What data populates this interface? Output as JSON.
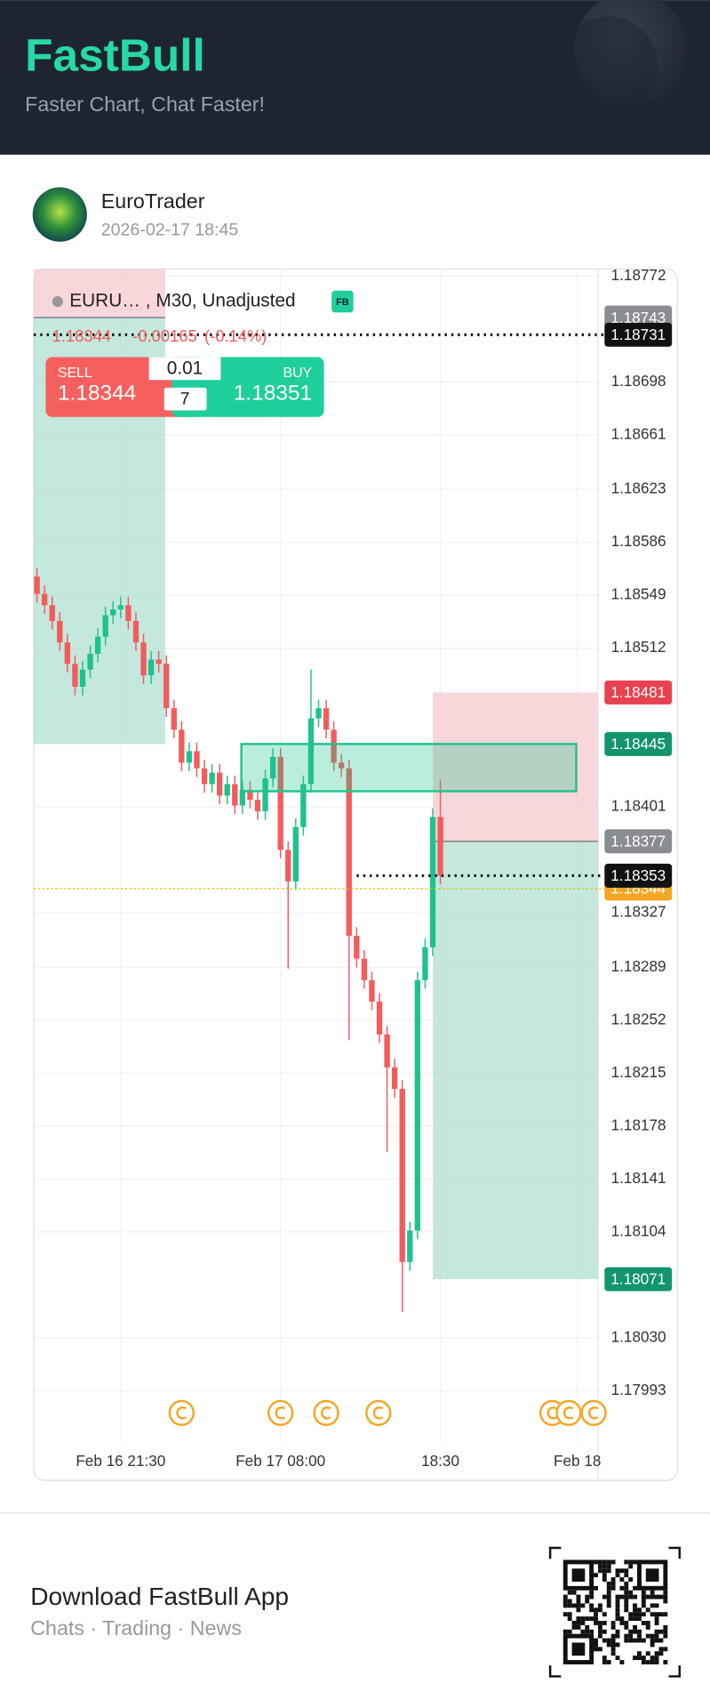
{
  "header": {
    "title": "FastBull",
    "subtitle": "Faster Chart, Chat Faster!"
  },
  "post": {
    "author": "EuroTrader",
    "time": "2026-02-17 18:45"
  },
  "chart_data": {
    "type": "candlestick",
    "legend": "EURU…  , M30, Unadjusted",
    "badge": "FB",
    "quote": {
      "last": "1.18344",
      "change": "-0.00165",
      "change_pct": "(-0.14%)"
    },
    "order_panel": {
      "sell_label": "SELL",
      "sell_price": "1.18344",
      "lot": "0.01",
      "count": "7",
      "buy_label": "BUY",
      "buy_price": "1.18351"
    },
    "categories": [
      null,
      null,
      null,
      null,
      null,
      null,
      null,
      null,
      null,
      null,
      null,
      "Feb 16 21:30",
      null,
      null,
      null,
      null,
      null,
      null,
      null,
      null,
      null,
      null,
      null,
      null,
      null,
      null,
      null,
      null,
      null,
      null,
      null,
      null,
      "Feb 17 08:00",
      null,
      null,
      null,
      null,
      null,
      null,
      null,
      null,
      null,
      null,
      null,
      null,
      null,
      null,
      null,
      null,
      null,
      null,
      null,
      null,
      "18:30",
      null,
      null,
      null,
      null,
      null,
      null,
      null,
      null,
      null,
      null,
      null,
      null,
      null,
      null,
      null,
      null,
      null,
      "Feb 18",
      null,
      null
    ],
    "open": [
      1.18562,
      1.1855,
      1.18542,
      1.18531,
      1.18516,
      1.18501,
      1.18485,
      1.18497,
      1.18508,
      1.1852,
      1.18535,
      1.18539,
      1.18542,
      1.18531,
      1.18516,
      1.18493,
      1.18504,
      1.18501,
      1.1847,
      1.18455,
      1.18432,
      1.1844,
      1.18428,
      1.18417,
      1.18425,
      1.18409,
      1.18417,
      1.18402,
      1.18413,
      1.18406,
      1.18398,
      1.18421,
      1.18436,
      1.18371,
      1.18349,
      1.18387,
      1.18417,
      1.18463,
      1.1847,
      1.18455,
      1.18432,
      1.18428,
      1.18311,
      1.18295,
      1.1828,
      1.18265,
      1.18242,
      1.18219,
      1.18204,
      1.18083,
      1.18105,
      1.1828,
      1.18303,
      1.18394,
      null,
      null,
      null,
      null,
      null,
      null,
      null,
      null,
      null,
      null,
      null,
      null,
      null,
      null,
      null,
      null,
      null,
      null,
      null,
      null
    ],
    "high": [
      1.18568,
      1.18556,
      1.18548,
      1.18537,
      1.18522,
      1.18507,
      1.18503,
      1.18514,
      1.18526,
      1.18541,
      1.18545,
      1.18548,
      1.18548,
      1.18537,
      1.18522,
      1.1851,
      1.1851,
      1.18507,
      1.18476,
      1.18461,
      1.18446,
      1.18446,
      1.18434,
      1.18431,
      1.18431,
      1.18423,
      1.18423,
      1.18419,
      1.18419,
      1.18412,
      1.18427,
      1.18442,
      1.18442,
      1.18377,
      1.18393,
      1.18423,
      1.18497,
      1.18476,
      1.18476,
      1.18461,
      1.18438,
      1.18434,
      1.18317,
      1.18301,
      1.18286,
      1.18271,
      1.18248,
      1.18225,
      1.1821,
      1.18111,
      1.18286,
      1.18309,
      1.184,
      1.1842,
      null,
      null,
      null,
      null,
      null,
      null,
      null,
      null,
      null,
      null,
      null,
      null,
      null,
      null,
      null,
      null,
      null,
      null,
      null,
      null
    ],
    "low": [
      1.18544,
      1.18536,
      1.18525,
      1.1851,
      1.18495,
      1.18479,
      1.18479,
      1.18491,
      1.18502,
      1.18514,
      1.18529,
      1.18533,
      1.18525,
      1.1851,
      1.18487,
      1.18487,
      1.18495,
      1.18464,
      1.18449,
      1.18426,
      1.18426,
      1.18422,
      1.18411,
      1.18411,
      1.18403,
      1.18403,
      1.18396,
      1.18396,
      1.184,
      1.18392,
      1.18392,
      1.18415,
      1.18365,
      1.18288,
      1.18343,
      1.18381,
      1.18411,
      1.18457,
      1.18449,
      1.18426,
      1.18422,
      1.18238,
      1.18289,
      1.18274,
      1.18259,
      1.18236,
      1.1816,
      1.18198,
      1.18048,
      1.18077,
      1.18099,
      1.18274,
      1.18297,
      1.18347,
      null,
      null,
      null,
      null,
      null,
      null,
      null,
      null,
      null,
      null,
      null,
      null,
      null,
      null,
      null,
      null,
      null,
      null,
      null,
      null
    ],
    "close": [
      1.1855,
      1.18542,
      1.18531,
      1.18516,
      1.18501,
      1.18485,
      1.18497,
      1.18508,
      1.1852,
      1.18535,
      1.18539,
      1.18542,
      1.18531,
      1.18516,
      1.18493,
      1.18504,
      1.18501,
      1.1847,
      1.18455,
      1.18432,
      1.1844,
      1.18428,
      1.18417,
      1.18425,
      1.18409,
      1.18417,
      1.18402,
      1.18413,
      1.18406,
      1.18398,
      1.18421,
      1.18436,
      1.18371,
      1.18349,
      1.18387,
      1.18417,
      1.18463,
      1.1847,
      1.18455,
      1.18432,
      1.18428,
      1.18311,
      1.18295,
      1.1828,
      1.18265,
      1.18242,
      1.18219,
      1.18204,
      1.18083,
      1.18105,
      1.1828,
      1.18303,
      1.18394,
      1.18353,
      null,
      null,
      null,
      null,
      null,
      null,
      null,
      null,
      null,
      null,
      null,
      null,
      null,
      null,
      null,
      null,
      null,
      null,
      null,
      null
    ],
    "up_color": "#1fc28f",
    "down_color": "#f25c5c",
    "ylim": [
      1.17957,
      1.18777
    ],
    "yticks": [
      1.18772,
      1.18698,
      1.18661,
      1.18623,
      1.18586,
      1.18549,
      1.18512,
      1.18401,
      1.18327,
      1.18289,
      1.18252,
      1.18215,
      1.18178,
      1.18141,
      1.18104,
      {
        "value": 1.1803,
        "label": "1.18030"
      },
      1.17993
    ],
    "grid": true,
    "positions": [
      {
        "entry": 1.18743,
        "target": 1.18445
      },
      {
        "stop": 1.18481,
        "entry": 1.18377,
        "target": 1.18071
      }
    ],
    "box": {
      "top": 1.18445,
      "bottom": 1.18412,
      "color": "#1fc28f"
    },
    "price_lines": [
      {
        "value": 1.18731,
        "color": "#111111"
      },
      {
        "value": 1.18353,
        "color": "#111111"
      },
      {
        "value": 1.18344,
        "color": "#d9c200"
      }
    ],
    "price_labels": [
      {
        "value": 1.18743,
        "color": "#8a8c93"
      },
      {
        "value": 1.18731,
        "color": "#111111"
      },
      {
        "value": 1.18481,
        "color": "#e8414f"
      },
      {
        "value": 1.18445,
        "color": "#12946e"
      },
      {
        "value": 1.18377,
        "color": "#8a8c93"
      },
      {
        "value": 1.18344,
        "color": "#f5a623"
      },
      {
        "value": 1.18353,
        "color": "#111111"
      },
      {
        "value": 1.18071,
        "color": "#12946e"
      }
    ]
  },
  "footer": {
    "title": "Download FastBull App",
    "subtitle": "Chats · Trading · News"
  }
}
